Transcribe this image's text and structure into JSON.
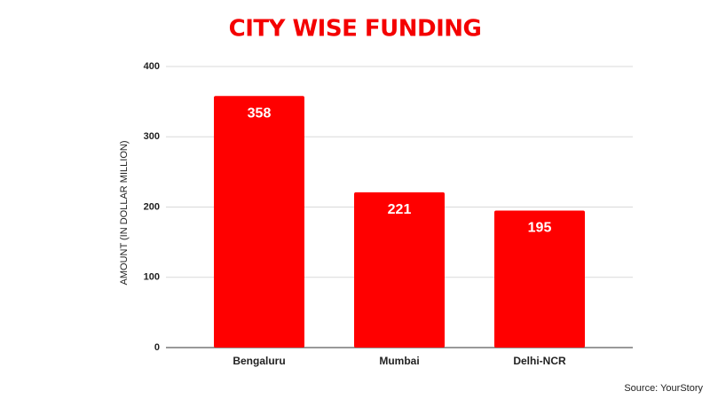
{
  "chart_data": {
    "type": "bar",
    "title": "CITY WISE FUNDING",
    "y_axis_label": "AMOUNT (IN DOLLAR MILLION)",
    "categories": [
      "Bengaluru",
      "Mumbai",
      "Delhi-NCR"
    ],
    "values": [
      358,
      221,
      195
    ],
    "color": "#ff0000",
    "ylim": [
      0,
      400
    ],
    "yticks": [
      0,
      100,
      200,
      300,
      400
    ],
    "grid": true,
    "source": "Source: YourStory"
  }
}
